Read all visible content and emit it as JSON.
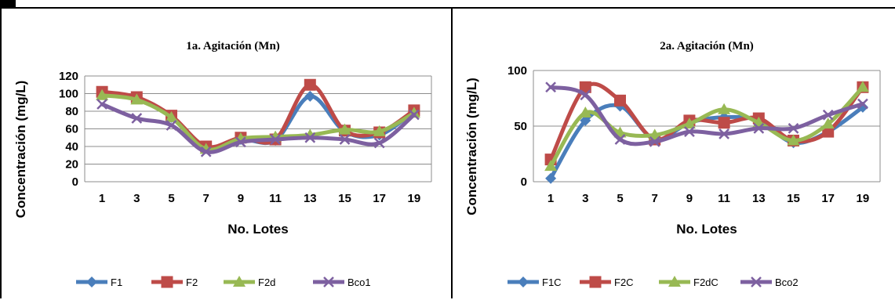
{
  "chart_data": [
    {
      "type": "line",
      "title": "1a. Agitación (Mn)",
      "xlabel": "No. Lotes",
      "ylabel": "Concentración (mg/L)",
      "x": [
        1,
        3,
        5,
        7,
        9,
        11,
        13,
        15,
        17,
        19
      ],
      "xticks": [
        "1",
        "3",
        "5",
        "7",
        "9",
        "11",
        "13",
        "15",
        "17",
        "19"
      ],
      "ylim": [
        0,
        120
      ],
      "yticks": [
        0,
        20,
        40,
        60,
        80,
        100,
        120
      ],
      "grid": true,
      "legend": "bottom",
      "series": [
        {
          "name": "F1",
          "color": "#4a7ebb",
          "marker": "diamond",
          "values": [
            100,
            94,
            73,
            38,
            48,
            47,
            97,
            57,
            53,
            80
          ]
        },
        {
          "name": "F2",
          "color": "#be4b48",
          "marker": "square",
          "values": [
            102,
            96,
            75,
            40,
            50,
            48,
            110,
            58,
            56,
            81
          ]
        },
        {
          "name": "F2d",
          "color": "#98b954",
          "marker": "triangle",
          "values": [
            98,
            93,
            73,
            37,
            49,
            51,
            53,
            59,
            57,
            78
          ]
        },
        {
          "name": "Bco1",
          "color": "#7d60a0",
          "marker": "x",
          "values": [
            88,
            72,
            64,
            34,
            45,
            48,
            50,
            48,
            44,
            76
          ]
        }
      ]
    },
    {
      "type": "line",
      "title": "2a. Agitación (Mn)",
      "xlabel": "No. Lotes",
      "ylabel": "Concentración (mg/L)",
      "x": [
        1,
        3,
        5,
        7,
        9,
        11,
        13,
        15,
        17,
        19
      ],
      "xticks": [
        "1",
        "3",
        "5",
        "7",
        "9",
        "11",
        "13",
        "15",
        "17",
        "19"
      ],
      "ylim": [
        0,
        100
      ],
      "yticks": [
        0,
        50,
        100
      ],
      "grid": true,
      "legend": "bottom",
      "series": [
        {
          "name": "F1C",
          "color": "#4a7ebb",
          "marker": "diamond",
          "values": [
            3,
            55,
            68,
            38,
            53,
            58,
            55,
            35,
            45,
            67
          ]
        },
        {
          "name": "F2C",
          "color": "#be4b48",
          "marker": "square",
          "values": [
            20,
            85,
            73,
            38,
            55,
            53,
            57,
            37,
            45,
            85
          ]
        },
        {
          "name": "F2dC",
          "color": "#98b954",
          "marker": "triangle",
          "values": [
            14,
            62,
            44,
            42,
            52,
            65,
            53,
            37,
            52,
            85
          ]
        },
        {
          "name": "Bco2",
          "color": "#7d60a0",
          "marker": "x",
          "values": [
            85,
            78,
            38,
            36,
            45,
            43,
            48,
            48,
            60,
            70
          ]
        }
      ]
    }
  ]
}
